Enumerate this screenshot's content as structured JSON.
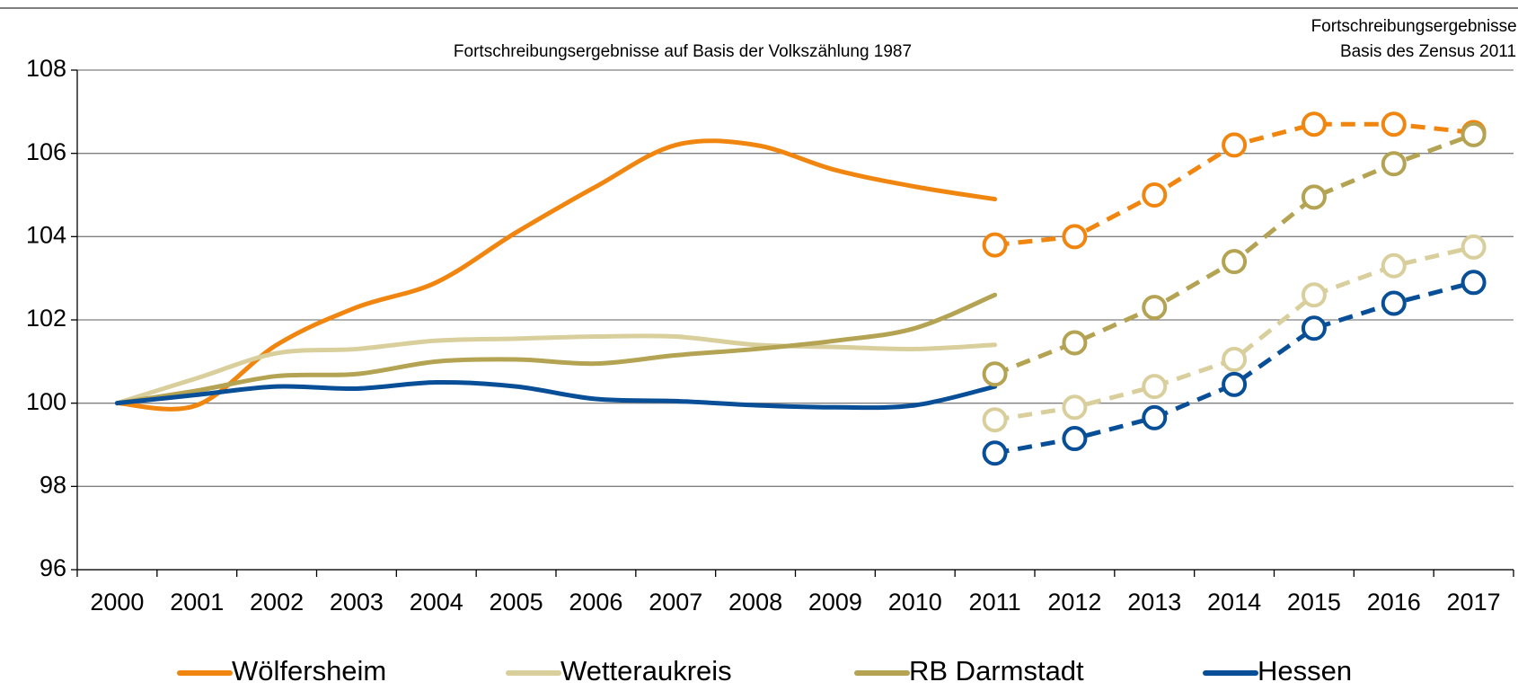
{
  "chart_data": {
    "type": "line",
    "annotations": [
      "Fortschreibungsergebnisse auf Basis der Volkszählung 1987",
      [
        "Fortschreibungsergebnisse auf",
        "Basis des Zensus 2011"
      ]
    ],
    "categories": [
      "2000",
      "2001",
      "2002",
      "2003",
      "2004",
      "2005",
      "2006",
      "2007",
      "2008",
      "2009",
      "2010",
      "2011",
      "2012",
      "2013",
      "2014",
      "2015",
      "2016",
      "2017"
    ],
    "ylim": [
      96,
      108
    ],
    "yticks": [
      96,
      98,
      100,
      102,
      104,
      106,
      108
    ],
    "grid": true,
    "series": [
      {
        "name": "Wölfersheim",
        "color": "#f0860f",
        "values": [
          100,
          99.95,
          101.4,
          102.3,
          102.9,
          104.1,
          105.2,
          106.2,
          106.2,
          105.6,
          105.2,
          104.9,
          null,
          null,
          null,
          null,
          null,
          null
        ],
        "dashed_values": [
          null,
          null,
          null,
          null,
          null,
          null,
          null,
          null,
          null,
          null,
          null,
          103.8,
          104.0,
          105.0,
          106.2,
          106.7,
          106.7,
          106.5
        ]
      },
      {
        "name": "Wetteraukreis",
        "color": "#d9cf9c",
        "values": [
          100,
          100.6,
          101.2,
          101.3,
          101.5,
          101.55,
          101.6,
          101.6,
          101.4,
          101.35,
          101.3,
          101.4,
          null,
          null,
          null,
          null,
          null,
          null
        ],
        "dashed_values": [
          null,
          null,
          null,
          null,
          null,
          null,
          null,
          null,
          null,
          null,
          null,
          99.6,
          99.9,
          100.4,
          101.05,
          102.6,
          103.3,
          103.75
        ]
      },
      {
        "name": "RB Darmstadt",
        "color": "#b3a352",
        "values": [
          100,
          100.3,
          100.65,
          100.7,
          101.0,
          101.05,
          100.95,
          101.15,
          101.3,
          101.5,
          101.8,
          102.6,
          null,
          null,
          null,
          null,
          null,
          null
        ],
        "dashed_values": [
          null,
          null,
          null,
          null,
          null,
          null,
          null,
          null,
          null,
          null,
          null,
          100.7,
          101.45,
          102.3,
          103.4,
          104.95,
          105.75,
          106.45
        ]
      },
      {
        "name": "Hessen",
        "color": "#084f98",
        "values": [
          100,
          100.2,
          100.4,
          100.35,
          100.5,
          100.4,
          100.1,
          100.05,
          99.95,
          99.9,
          99.95,
          100.4,
          null,
          null,
          null,
          null,
          null,
          null
        ],
        "dashed_values": [
          null,
          null,
          null,
          null,
          null,
          null,
          null,
          null,
          null,
          null,
          null,
          98.8,
          99.15,
          99.65,
          100.45,
          101.8,
          102.4,
          102.9
        ]
      }
    ]
  }
}
